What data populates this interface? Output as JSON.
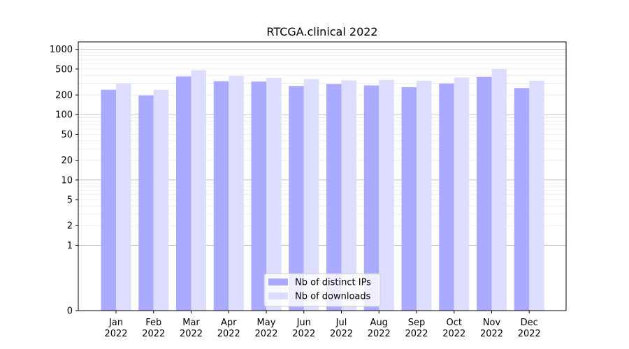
{
  "chart_data": {
    "type": "bar",
    "title": "RTCGA.clinical 2022",
    "xlabel": "",
    "ylabel": "",
    "yscale": "symlog",
    "ylim": [
      0,
      1300
    ],
    "yticks": [
      0,
      1,
      2,
      5,
      10,
      20,
      50,
      100,
      200,
      500,
      1000
    ],
    "grid": true,
    "legend_position": "bottom-center",
    "categories": [
      [
        "Jan",
        "2022"
      ],
      [
        "Feb",
        "2022"
      ],
      [
        "Mar",
        "2022"
      ],
      [
        "Apr",
        "2022"
      ],
      [
        "May",
        "2022"
      ],
      [
        "Jun",
        "2022"
      ],
      [
        "Jul",
        "2022"
      ],
      [
        "Aug",
        "2022"
      ],
      [
        "Sep",
        "2022"
      ],
      [
        "Oct",
        "2022"
      ],
      [
        "Nov",
        "2022"
      ],
      [
        "Dec",
        "2022"
      ]
    ],
    "series": [
      {
        "name": "Nb of distinct IPs",
        "color": "#aaaaff",
        "values": [
          240,
          197,
          385,
          325,
          322,
          275,
          295,
          280,
          263,
          300,
          380,
          255
        ]
      },
      {
        "name": "Nb of downloads",
        "color": "#ddddff",
        "values": [
          300,
          240,
          480,
          390,
          365,
          350,
          335,
          340,
          330,
          370,
          500,
          330
        ]
      }
    ]
  }
}
